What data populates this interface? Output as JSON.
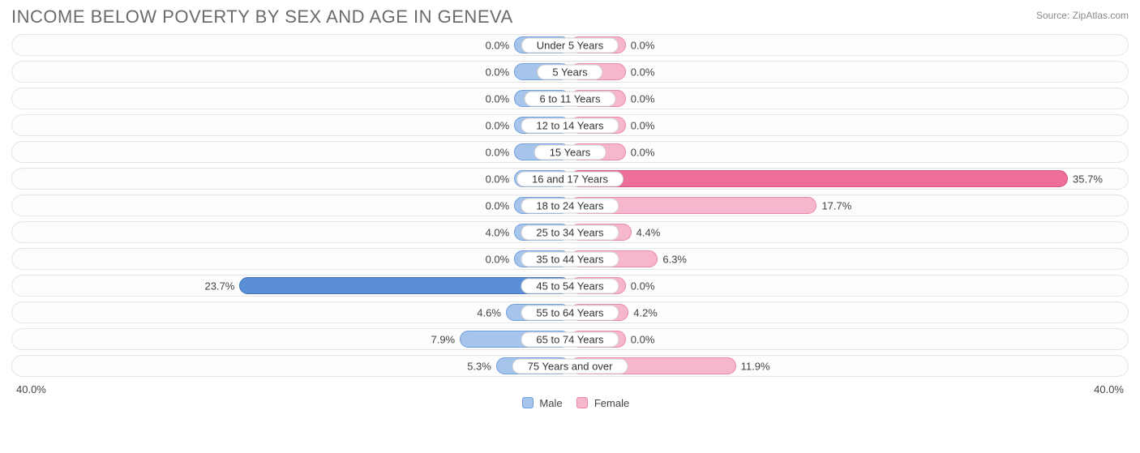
{
  "title": "INCOME BELOW POVERTY BY SEX AND AGE IN GENEVA",
  "source": "Source: ZipAtlas.com",
  "type": "diverging-bar",
  "axis_max": 40.0,
  "axis_label": "40.0%",
  "min_bar_pct": 4.0,
  "colors": {
    "male_fill": "#a7c4eb",
    "male_stroke": "#6e9edf",
    "male_fill_big": "#5a8fd8",
    "male_stroke_big": "#3f74bd",
    "female_fill": "#f6b7ce",
    "female_stroke": "#ec87ad",
    "female_fill_big": "#ed6d9b",
    "female_stroke_big": "#db5284",
    "big_threshold": 20.0,
    "track_bg": "#fdfdfd",
    "track_border": "#e5e5e5",
    "text": "#444444",
    "title_color": "#6b6b6b"
  },
  "legend": {
    "male": "Male",
    "female": "Female"
  },
  "rows": [
    {
      "label": "Under 5 Years",
      "male": 0.0,
      "female": 0.0
    },
    {
      "label": "5 Years",
      "male": 0.0,
      "female": 0.0
    },
    {
      "label": "6 to 11 Years",
      "male": 0.0,
      "female": 0.0
    },
    {
      "label": "12 to 14 Years",
      "male": 0.0,
      "female": 0.0
    },
    {
      "label": "15 Years",
      "male": 0.0,
      "female": 0.0
    },
    {
      "label": "16 and 17 Years",
      "male": 0.0,
      "female": 35.7
    },
    {
      "label": "18 to 24 Years",
      "male": 0.0,
      "female": 17.7
    },
    {
      "label": "25 to 34 Years",
      "male": 4.0,
      "female": 4.4
    },
    {
      "label": "35 to 44 Years",
      "male": 0.0,
      "female": 6.3
    },
    {
      "label": "45 to 54 Years",
      "male": 23.7,
      "female": 0.0
    },
    {
      "label": "55 to 64 Years",
      "male": 4.6,
      "female": 4.2
    },
    {
      "label": "65 to 74 Years",
      "male": 7.9,
      "female": 0.0
    },
    {
      "label": "75 Years and over",
      "male": 5.3,
      "female": 11.9
    }
  ]
}
